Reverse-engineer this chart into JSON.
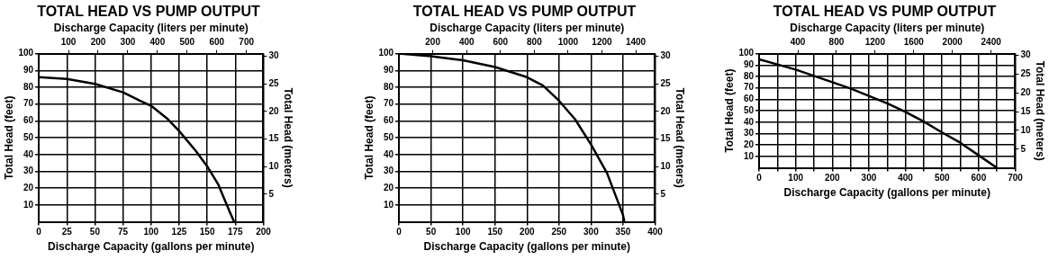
{
  "chart_data": [
    {
      "type": "line",
      "title": "TOTAL HEAD VS PUMP OUTPUT",
      "xlabel": "Discharge Capacity (gallons per minute)",
      "x2label": "Discharge Capacity (liters per minute)",
      "ylabel": "Total Head (feet)",
      "y2label": "Total Head (meters)",
      "grid": true,
      "series": [
        {
          "color": "#000000",
          "x": [
            0,
            25,
            50,
            75,
            90,
            100,
            115,
            125,
            140,
            150,
            160,
            165,
            170,
            174
          ],
          "values": [
            86,
            85,
            82,
            77,
            72,
            69,
            61,
            54,
            42,
            33,
            22,
            14,
            6,
            0
          ]
        }
      ],
      "xlim": [
        0,
        200
      ],
      "xticks": [
        0,
        25,
        50,
        75,
        100,
        125,
        150,
        175,
        200
      ],
      "x2lim": [
        0,
        757
      ],
      "x2ticks": [
        100,
        200,
        300,
        400,
        500,
        600,
        700
      ],
      "ylim": [
        0,
        100
      ],
      "yticks": [
        10,
        20,
        30,
        40,
        50,
        60,
        70,
        80,
        90,
        100
      ],
      "y2lim": [
        0,
        30.48
      ],
      "y2ticks": [
        5,
        10,
        15,
        20,
        25,
        30
      ]
    },
    {
      "type": "line",
      "title": "TOTAL HEAD VS PUMP OUTPUT",
      "xlabel": "Discharge Capacity (gallons per minute)",
      "x2label": "Discharge Capacity (liters per minute)",
      "ylabel": "Total Head (feet)",
      "y2label": "Total Head (meters)",
      "grid": true,
      "series": [
        {
          "color": "#000000",
          "x": [
            0,
            50,
            100,
            150,
            200,
            225,
            250,
            275,
            300,
            325,
            340,
            350,
            352
          ],
          "values": [
            100,
            98.5,
            96,
            92,
            86,
            81,
            72,
            61,
            46,
            29,
            14,
            4,
            0
          ]
        }
      ],
      "xlim": [
        0,
        400
      ],
      "xticks": [
        0,
        50,
        100,
        150,
        200,
        250,
        300,
        350,
        400
      ],
      "x2lim": [
        0,
        1514
      ],
      "x2ticks": [
        200,
        400,
        600,
        800,
        1000,
        1200,
        1400
      ],
      "ylim": [
        0,
        100
      ],
      "yticks": [
        10,
        20,
        30,
        40,
        50,
        60,
        70,
        80,
        90,
        100
      ],
      "y2lim": [
        0,
        30.48
      ],
      "y2ticks": [
        5,
        10,
        15,
        20,
        25,
        30
      ]
    },
    {
      "type": "line",
      "title": "TOTAL HEAD VS PUMP OUTPUT",
      "xlabel": "Discharge Capacity (gallons per minute)",
      "x2label": "Discharge Capacity (liters per minute)",
      "ylabel": "Total Head (feet)",
      "y2label": "Total Head (meters)",
      "grid": true,
      "series": [
        {
          "color": "#000000",
          "x": [
            0,
            50,
            100,
            150,
            200,
            250,
            300,
            350,
            400,
            450,
            500,
            550,
            600,
            650
          ],
          "values": [
            95,
            90.5,
            86,
            80.5,
            75,
            69.5,
            63,
            56.5,
            49,
            40.5,
            31,
            22,
            11,
            0
          ]
        }
      ],
      "xlim": [
        0,
        700
      ],
      "xticks": [
        0,
        {
          "value": 50,
          "label": null
        },
        100,
        {
          "value": 150,
          "label": null
        },
        200,
        {
          "value": 250,
          "label": null
        },
        300,
        {
          "value": 350,
          "label": null
        },
        400,
        {
          "value": 450,
          "label": null
        },
        500,
        {
          "value": 550,
          "label": null
        },
        600,
        {
          "value": 650,
          "label": null
        },
        700
      ],
      "x2lim": [
        0,
        2650
      ],
      "x2ticks": [
        400,
        800,
        1200,
        1600,
        2000,
        2400
      ],
      "ylim": [
        0,
        100
      ],
      "yticks": [
        10,
        20,
        30,
        40,
        50,
        60,
        70,
        80,
        90,
        100
      ],
      "y2lim": [
        0,
        30.48
      ],
      "y2ticks": [
        5,
        10,
        15,
        20,
        25,
        30
      ]
    }
  ]
}
